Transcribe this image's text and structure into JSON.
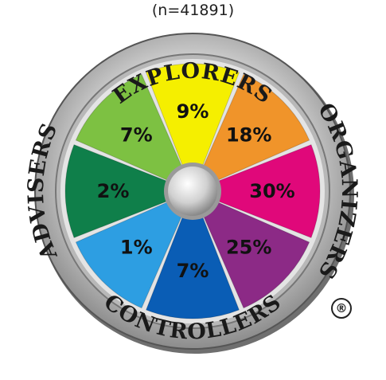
{
  "subtitle": "(n=41891)",
  "registered_mark": "®",
  "chart_data": {
    "type": "pie",
    "title": "",
    "subtitle": "(n=41891)",
    "unit": "%",
    "slices": [
      {
        "label": "9%",
        "value": 9,
        "group": "EXPLORERS",
        "color": "#f5ef00"
      },
      {
        "label": "18%",
        "value": 18,
        "group": "EXPLORERS",
        "color": "#f0942a"
      },
      {
        "label": "30%",
        "value": 30,
        "group": "ORGANIZERS",
        "color": "#e0087a"
      },
      {
        "label": "25%",
        "value": 25,
        "group": "ORGANIZERS",
        "color": "#8c2a86"
      },
      {
        "label": "7%",
        "value": 7,
        "group": "CONTROLLERS",
        "color": "#0a5db5"
      },
      {
        "label": "1%",
        "value": 1,
        "group": "CONTROLLERS",
        "color": "#2d9ee2"
      },
      {
        "label": "2%",
        "value": 2,
        "group": "ADVISERS",
        "color": "#0f7f4a"
      },
      {
        "label": "7%",
        "value": 7,
        "group": "EXPLORERS",
        "color": "#7dc142"
      }
    ],
    "ring_labels": [
      "EXPLORERS",
      "ORGANIZERS",
      "CONTROLLERS",
      "ADVISERS"
    ]
  }
}
